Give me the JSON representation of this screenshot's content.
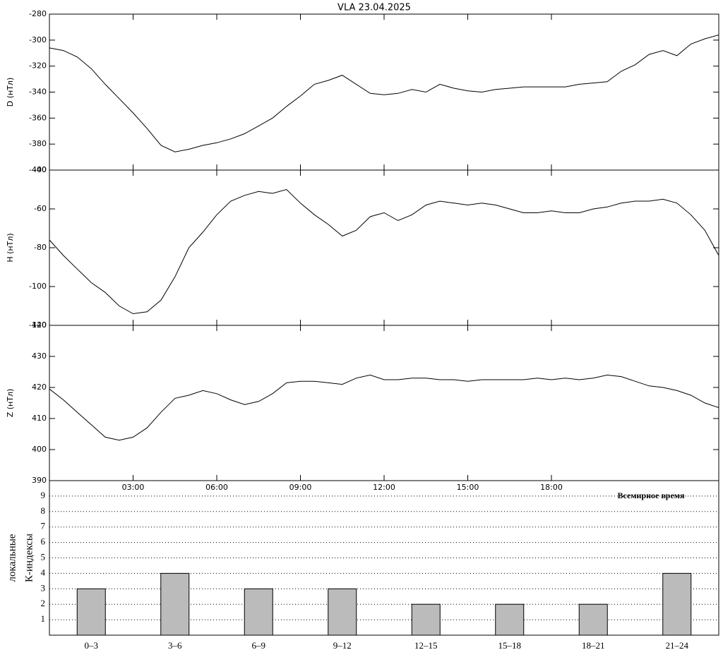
{
  "chart_data": [
    {
      "type": "line",
      "title": "VLA   23.04.2025",
      "y_label": "D (нТл)",
      "color": "#000000",
      "xlim": [
        0,
        24
      ],
      "ylim": [
        -400,
        -280
      ],
      "yticks": [
        -400,
        -380,
        -360,
        -340,
        -320,
        -300,
        -280
      ],
      "x": [
        0,
        0.5,
        1,
        1.5,
        2,
        2.5,
        3,
        3.5,
        4,
        4.5,
        5,
        5.5,
        6,
        6.5,
        7,
        7.5,
        8,
        8.5,
        9,
        9.5,
        10,
        10.5,
        11,
        11.5,
        12,
        12.5,
        13,
        13.5,
        14,
        14.5,
        15,
        15.5,
        16,
        16.5,
        17,
        17.5,
        18,
        18.5,
        19,
        19.5,
        20,
        20.5,
        21,
        21.5,
        22,
        22.5,
        23,
        23.5,
        24
      ],
      "values": [
        -306,
        -308,
        -313,
        -322,
        -334,
        -345,
        -356,
        -368,
        -381,
        -386,
        -384,
        -381,
        -379,
        -376,
        -372,
        -366,
        -360,
        -351,
        -343,
        -334,
        -331,
        -327,
        -334,
        -341,
        -342,
        -341,
        -338,
        -340,
        -334,
        -337,
        -339,
        -340,
        -338,
        -337,
        -336,
        -336,
        -336,
        -336,
        -334,
        -333,
        -332,
        -324,
        -319,
        -311,
        -308,
        -312,
        -303,
        -299,
        -296
      ]
    },
    {
      "type": "line",
      "y_label": "H (нТл)",
      "color": "#000000",
      "xlim": [
        0,
        24
      ],
      "ylim": [
        -120,
        -40
      ],
      "yticks": [
        -120,
        -100,
        -80,
        -60,
        -40
      ],
      "x": [
        0,
        0.5,
        1,
        1.5,
        2,
        2.5,
        3,
        3.5,
        4,
        4.5,
        5,
        5.5,
        6,
        6.5,
        7,
        7.5,
        8,
        8.5,
        9,
        9.5,
        10,
        10.5,
        11,
        11.5,
        12,
        12.5,
        13,
        13.5,
        14,
        14.5,
        15,
        15.5,
        16,
        16.5,
        17,
        17.5,
        18,
        18.5,
        19,
        19.5,
        20,
        20.5,
        21,
        21.5,
        22,
        22.5,
        23,
        23.5,
        24
      ],
      "values": [
        -76,
        -84,
        -91,
        -98,
        -103,
        -110,
        -114,
        -113,
        -107,
        -95,
        -80,
        -72,
        -63,
        -56,
        -53,
        -51,
        -52,
        -50,
        -57,
        -63,
        -68,
        -74,
        -71,
        -64,
        -62,
        -66,
        -63,
        -58,
        -56,
        -57,
        -58,
        -57,
        -58,
        -60,
        -62,
        -62,
        -61,
        -62,
        -62,
        -60,
        -59,
        -57,
        -56,
        -56,
        -55,
        -57,
        -63,
        -71,
        -84
      ]
    },
    {
      "type": "line",
      "y_label": "Z (нТл)",
      "x_label": "Всемирное время",
      "color": "#000000",
      "xlim": [
        0,
        24
      ],
      "ylim": [
        390,
        440
      ],
      "yticks": [
        390,
        400,
        410,
        420,
        430,
        440
      ],
      "xticks": [
        {
          "value": 3,
          "label": "03:00"
        },
        {
          "value": 6,
          "label": "06:00"
        },
        {
          "value": 9,
          "label": "09:00"
        },
        {
          "value": 12,
          "label": "12:00"
        },
        {
          "value": 15,
          "label": "15:00"
        },
        {
          "value": 18,
          "label": "18:00"
        }
      ],
      "x": [
        0,
        0.5,
        1,
        1.5,
        2,
        2.5,
        3,
        3.5,
        4,
        4.5,
        5,
        5.5,
        6,
        6.5,
        7,
        7.5,
        8,
        8.5,
        9,
        9.5,
        10,
        10.5,
        11,
        11.5,
        12,
        12.5,
        13,
        13.5,
        14,
        14.5,
        15,
        15.5,
        16,
        16.5,
        17,
        17.5,
        18,
        18.5,
        19,
        19.5,
        20,
        20.5,
        21,
        21.5,
        22,
        22.5,
        23,
        23.5,
        24
      ],
      "values": [
        419.5,
        416,
        412,
        408,
        404,
        403,
        404,
        407,
        412,
        416.5,
        417.5,
        419,
        418,
        416,
        414.5,
        415.5,
        418,
        421.5,
        422,
        422,
        421.5,
        421,
        423,
        424,
        422.5,
        422.5,
        423,
        423,
        422.5,
        422.5,
        422,
        422.5,
        422.5,
        422.5,
        422.5,
        423,
        422.5,
        423,
        422.5,
        423,
        424,
        423.5,
        422,
        420.5,
        420,
        419,
        417.5,
        415,
        413.5
      ]
    },
    {
      "type": "bar",
      "y_label": [
        "локальные",
        "К-индексы"
      ],
      "color": "#bbbbbb",
      "grid": true,
      "ylim": [
        0,
        10
      ],
      "yticks": [
        1,
        2,
        3,
        4,
        5,
        6,
        7,
        8,
        9
      ],
      "categories": [
        "0–3",
        "3–6",
        "6–9",
        "9–12",
        "12–15",
        "15–18",
        "18–21",
        "21–24"
      ],
      "values": [
        3,
        4,
        3,
        3,
        2,
        2,
        2,
        4
      ]
    }
  ]
}
